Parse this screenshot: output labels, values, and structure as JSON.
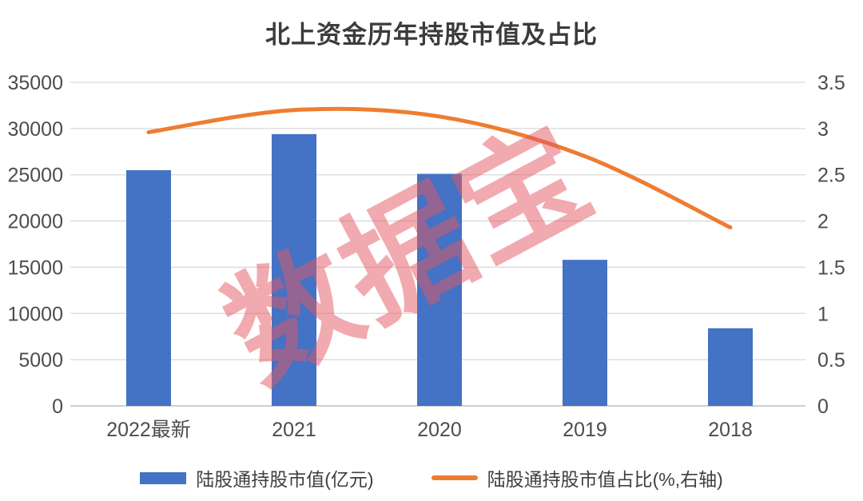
{
  "chart_data": {
    "type": "bar+line",
    "title": "北上资金历年持股市值及占比",
    "categories": [
      "2022最新",
      "2021",
      "2020",
      "2019",
      "2018"
    ],
    "series": [
      {
        "name": "陆股通持股市值(亿元)",
        "type": "bar",
        "axis": "left",
        "color": "#4472C4",
        "values": [
          25500,
          29400,
          25100,
          15800,
          8400
        ]
      },
      {
        "name": "陆股通持股市值占比(%,右轴)",
        "type": "line",
        "axis": "right",
        "color": "#ED7D31",
        "values": [
          2.96,
          3.2,
          3.13,
          2.7,
          1.93
        ]
      }
    ],
    "left_axis": {
      "min": 0,
      "max": 35000,
      "step": 5000,
      "ticks": [
        "0",
        "5000",
        "10000",
        "15000",
        "20000",
        "25000",
        "30000",
        "35000"
      ]
    },
    "right_axis": {
      "min": 0,
      "max": 3.5,
      "step": 0.5,
      "ticks": [
        "0",
        "0.5",
        "1",
        "1.5",
        "2",
        "2.5",
        "3",
        "3.5"
      ]
    },
    "grid": true,
    "legend_position": "bottom",
    "watermark": "数据宝",
    "colors": {
      "bar": "#4472C4",
      "line": "#ED7D31",
      "watermark": "#E4565F",
      "title_text": "#3B3B3B",
      "tick_text": "#4D4D4D",
      "gridline": "#D9D9D9",
      "axis_line": "#BFBFBF"
    }
  }
}
